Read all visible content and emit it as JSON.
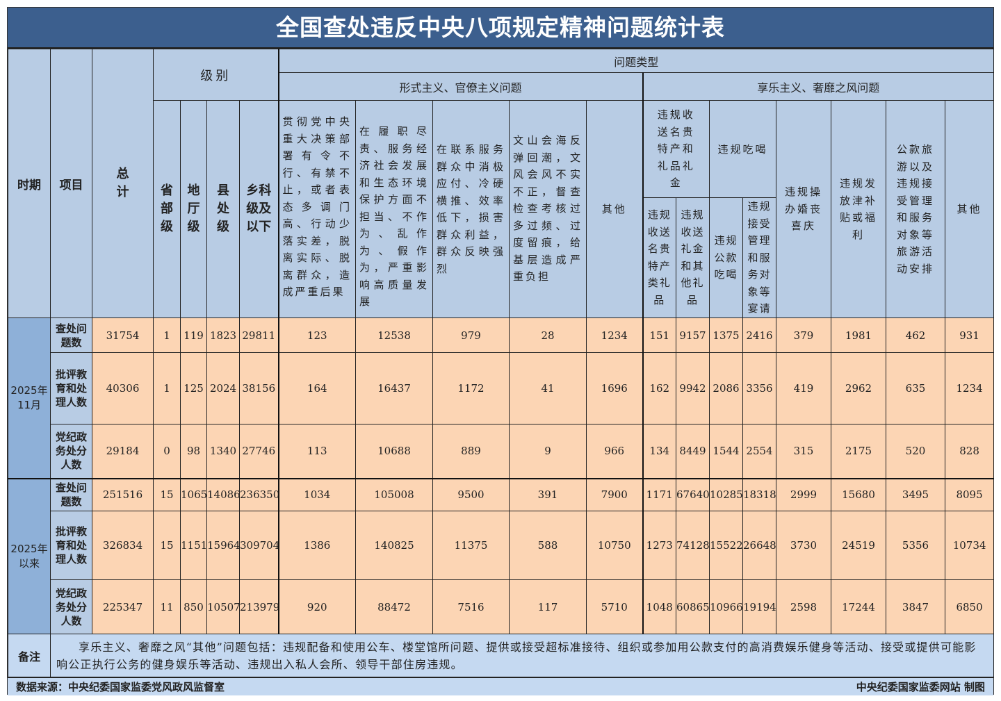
{
  "title": "全国查处违反中央八项规定精神问题统计表",
  "headers": {
    "period": "时期",
    "item": "项目",
    "total": "总计",
    "level": "级别",
    "levels": [
      "省部级",
      "地厅级",
      "县处级",
      "乡科级及以下"
    ],
    "problem_type": "问题类型",
    "formalism": "形式主义、官僚主义问题",
    "hedonism": "享乐主义、奢靡之风问题",
    "formalism_cols": [
      "贯彻党中央重大决策部署有令不行、有禁不止，或者表态多调门高、行动少落实差，脱离实际、脱离群众，造成严重后果",
      "在履职尽责、服务经济社会发展和生态环境保护方面不担当、不作为、乱作为、假作为，严重影响高质量发展",
      "在联系服务群众中消极应付、冷硬横推、效率低下，损害群众利益，群众反映强烈",
      "文山会海反弹回潮，文风会风不实不正，督查检查考核过多过频、过度留痕，给基层造成严重负担",
      "其他"
    ],
    "gifts_group": "违规收送名贵特产和礼品礼金",
    "gifts_cols": [
      "违规收送名贵特产类礼品",
      "违规收送礼金和其他礼品"
    ],
    "dining_group": "违规吃喝",
    "dining_cols": [
      "违规公款吃喝",
      "违规接受管理和服务对象等宴请"
    ],
    "hedonism_cols": [
      "违规操办婚丧喜庆",
      "违规发放津补贴或福利",
      "公款旅游以及违规接受管理和服务对象等旅游活动安排",
      "其他"
    ]
  },
  "periods": [
    {
      "label": "2025年\n11月",
      "rows": [
        {
          "item": "查处问题数",
          "values": [
            31754,
            1,
            119,
            1823,
            29811,
            123,
            12538,
            979,
            28,
            1234,
            151,
            9157,
            1375,
            2416,
            379,
            1981,
            462,
            931
          ]
        },
        {
          "item": "批评教育和处理人数",
          "values": [
            40306,
            1,
            125,
            2024,
            38156,
            164,
            16437,
            1172,
            41,
            1696,
            162,
            9942,
            2086,
            3356,
            419,
            2962,
            635,
            1234
          ]
        },
        {
          "item": "党纪政务处分人数",
          "values": [
            29184,
            0,
            98,
            1340,
            27746,
            113,
            10688,
            889,
            9,
            966,
            134,
            8449,
            1544,
            2554,
            315,
            2175,
            520,
            828
          ]
        }
      ]
    },
    {
      "label": "2025年\n以来",
      "rows": [
        {
          "item": "查处问题数",
          "values": [
            251516,
            15,
            1065,
            14086,
            236350,
            1034,
            105008,
            9500,
            391,
            7900,
            1171,
            67640,
            10285,
            18318,
            2999,
            15680,
            3495,
            8095
          ]
        },
        {
          "item": "批评教育和处理人数",
          "values": [
            326834,
            15,
            1151,
            15964,
            309704,
            1386,
            140825,
            11375,
            588,
            10750,
            1273,
            74128,
            15522,
            26648,
            3730,
            24519,
            5356,
            10734
          ]
        },
        {
          "item": "党纪政务处分人数",
          "values": [
            225347,
            11,
            850,
            10507,
            213979,
            920,
            88472,
            7516,
            117,
            5710,
            1048,
            60865,
            10966,
            19194,
            2598,
            17244,
            3847,
            6850
          ]
        }
      ]
    }
  ],
  "notes": {
    "label": "备注",
    "text": "享乐主义、奢靡之风“其他”问题包括：违规配备和使用公车、楼堂馆所问题、提供或接受超标准接待、组织或参加用公款支付的高消费娱乐健身等活动、接受或提供可能影响公正执行公务的健身娱乐等活动、违规出入私人会所、领导干部住房违规。"
  },
  "footer": {
    "source": "数据来源：中央纪委国家监委党风政风监督室",
    "credit": "中央纪委国家监委网站 制图"
  },
  "colors": {
    "title_bg": "#3c5f8e",
    "header_bg": "#b8cce4",
    "period_bg": "#8eb0d8",
    "data_bg": "#fcd5b4",
    "notes_bg": "#c5d9f1"
  }
}
